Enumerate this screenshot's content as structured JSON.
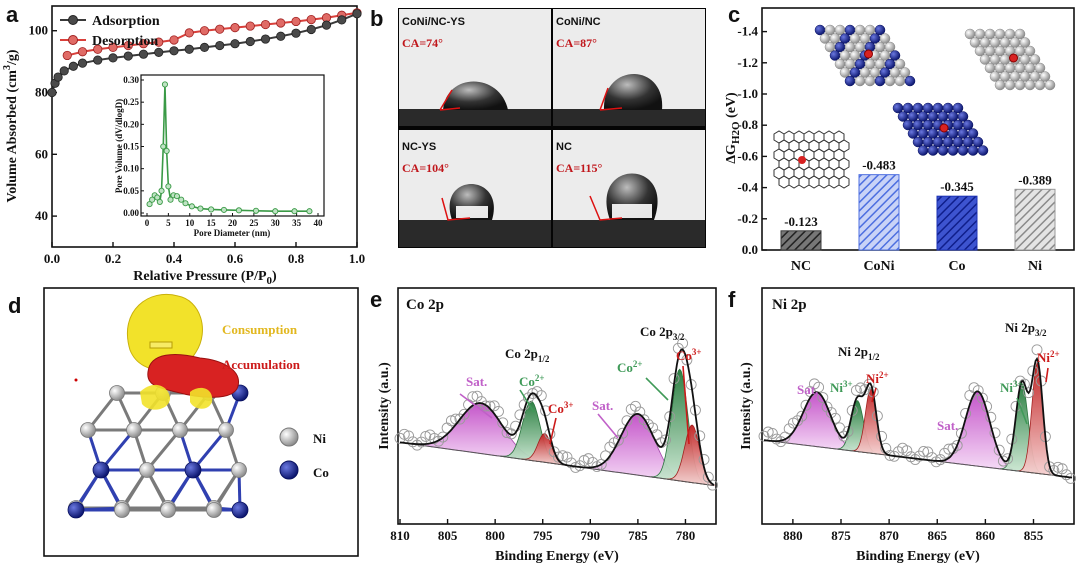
{
  "colors": {
    "adsorption": "#3a3a3a",
    "desorption": "#d9403b",
    "inset": "#3a9a46",
    "ca_text": "#c0161b",
    "ni": "#b4b4b4",
    "co": "#1c2aa0",
    "consumption": "#e8c81a",
    "accumulation": "#cc1a1a",
    "sat": "#d678d8",
    "co2": "#3f9a58",
    "co3": "#d93c3c",
    "bar_nc": "#3a3a3a",
    "bar_coni": "#4d6fe0",
    "bar_co": "#1c32b4",
    "bar_ni": "#9a9a9a"
  },
  "chart_data": [
    {
      "panel": "a",
      "type": "line",
      "xlabel": "Relative Pressure (P/P₀)",
      "xlabel_main": "Relative Pressure (P/P",
      "xlabel_sub": "0",
      "xlabel_close": ")",
      "ylabel": "Volume Absorbed (cm³/g)",
      "ylabel_main": "Volume Absorbed (cm",
      "ylabel_sup": "3",
      "ylabel_close": "/g)",
      "xlim": [
        0,
        1.0
      ],
      "ylim": [
        30,
        108
      ],
      "xticks": [
        "0.0",
        "0.2",
        "0.4",
        "0.6",
        "0.8",
        "1.0"
      ],
      "yticks": [
        "40",
        "60",
        "80",
        "100"
      ],
      "legend": [
        "Adsorption",
        "Desorption"
      ],
      "series": [
        {
          "name": "Adsorption",
          "x": [
            0.0,
            0.01,
            0.02,
            0.04,
            0.07,
            0.1,
            0.15,
            0.2,
            0.25,
            0.3,
            0.35,
            0.4,
            0.45,
            0.5,
            0.55,
            0.6,
            0.65,
            0.7,
            0.75,
            0.8,
            0.85,
            0.9,
            0.95,
            1.0
          ],
          "y": [
            80,
            83,
            85,
            87,
            88.5,
            89.5,
            90.5,
            91.2,
            91.8,
            92.4,
            93,
            93.5,
            94,
            94.6,
            95.2,
            95.8,
            96.5,
            97.3,
            98.2,
            99.2,
            100.4,
            101.8,
            103.5,
            105.5
          ]
        },
        {
          "name": "Desorption",
          "x": [
            0.05,
            0.1,
            0.15,
            0.2,
            0.25,
            0.3,
            0.35,
            0.4,
            0.45,
            0.5,
            0.55,
            0.6,
            0.65,
            0.7,
            0.75,
            0.8,
            0.85,
            0.9,
            0.95,
            1.0
          ],
          "y": [
            92,
            93.2,
            94,
            94.6,
            95.2,
            95.8,
            96.3,
            97,
            99.3,
            100,
            100.5,
            101,
            101.5,
            102,
            102.5,
            103,
            103.6,
            104.2,
            105,
            105.8
          ]
        }
      ],
      "inset": {
        "xlabel": "Pore Diameter (nm)",
        "ylabel": "Pore Volume (dV/dlogD)",
        "xlim": [
          0,
          40
        ],
        "ylim": [
          0,
          0.3
        ],
        "xticks": [
          "0",
          "5",
          "10",
          "15",
          "20",
          "25",
          "30",
          "35",
          "40"
        ],
        "yticks": [
          "0.00",
          "0.05",
          "0.10",
          "0.15",
          "0.20",
          "0.25",
          "0.30"
        ],
        "x": [
          0.6,
          1.2,
          1.8,
          2.4,
          3.0,
          3.4,
          3.8,
          4.2,
          4.6,
          5.0,
          5.5,
          6.2,
          7.0,
          8.0,
          9.0,
          10.5,
          12.5,
          15.0,
          18.0,
          21.5,
          25.5,
          30.0,
          34.5,
          38.0
        ],
        "y": [
          0.02,
          0.03,
          0.04,
          0.035,
          0.025,
          0.05,
          0.15,
          0.29,
          0.14,
          0.06,
          0.03,
          0.04,
          0.038,
          0.03,
          0.022,
          0.015,
          0.01,
          0.008,
          0.007,
          0.006,
          0.005,
          0.004,
          0.004,
          0.004
        ]
      }
    },
    {
      "panel": "b",
      "type": "image-grid",
      "cells": [
        {
          "label": "CoNi/NC-YS",
          "ca": "CA=74°"
        },
        {
          "label": "CoNi/NC",
          "ca": "CA=87°"
        },
        {
          "label": "NC-YS",
          "ca": "CA=104°"
        },
        {
          "label": "NC",
          "ca": "CA=115°"
        }
      ]
    },
    {
      "panel": "c",
      "type": "bar",
      "ylabel": "ΔG_H2O (eV)",
      "ylabel_main": "ΔG",
      "ylabel_sub": "H2O",
      "ylabel_unit": " (eV)",
      "ylim": [
        0,
        -1.5
      ],
      "yticks": [
        "0.0",
        "-0.2",
        "-0.4",
        "-0.6",
        "-0.8",
        "-1.0",
        "-1.2",
        "-1.4"
      ],
      "categories": [
        "NC",
        "CoNi",
        "Co",
        "Ni"
      ],
      "values": [
        -0.123,
        -0.483,
        -0.345,
        -0.389
      ],
      "value_labels": [
        "-0.123",
        "-0.483",
        "-0.345",
        "-0.389"
      ]
    },
    {
      "panel": "d",
      "type": "diagram",
      "legend": [
        "Consumption",
        "Accumulation",
        "Ni",
        "Co"
      ]
    },
    {
      "panel": "e",
      "type": "line",
      "title": "Co 2p",
      "xlabel": "Binding Energy (eV)",
      "ylabel": "Intensity (a.u.)",
      "xlim": [
        810,
        777
      ],
      "xticks": [
        "810",
        "805",
        "800",
        "795",
        "790",
        "785",
        "780"
      ],
      "xtick_values": [
        810,
        805,
        800,
        795,
        790,
        785,
        780
      ],
      "peaks": [
        {
          "label": "Co 2p",
          "sub": "1/2",
          "sup": "",
          "kind": "main"
        },
        {
          "label": "Co 2p",
          "sub": "3/2",
          "sup": "",
          "kind": "main"
        },
        {
          "label": "Co",
          "sub": "",
          "sup": "2+",
          "kind": "co2"
        },
        {
          "label": "Co",
          "sub": "",
          "sup": "3+",
          "kind": "co3"
        },
        {
          "label": "Sat.",
          "sub": "",
          "sup": "",
          "kind": "sat"
        }
      ],
      "components": [
        {
          "name": "Sat.",
          "center": 801.5,
          "height": 0.28,
          "width": 3.2
        },
        {
          "name": "Co2+",
          "center": 796.2,
          "height": 0.33,
          "width": 1.3
        },
        {
          "name": "Co3+",
          "center": 794.8,
          "height": 0.16,
          "width": 1.0
        },
        {
          "name": "Sat.",
          "center": 785.0,
          "height": 0.34,
          "width": 2.5
        },
        {
          "name": "Co2+",
          "center": 780.6,
          "height": 0.62,
          "width": 1.2
        },
        {
          "name": "Co3+",
          "center": 779.3,
          "height": 0.32,
          "width": 1.1
        }
      ]
    },
    {
      "panel": "f",
      "type": "line",
      "title": "Ni 2p",
      "xlabel": "Binding Energy (eV)",
      "ylabel": "Intensity (a.u.)",
      "xlim": [
        883,
        851
      ],
      "xticks": [
        "880",
        "875",
        "870",
        "865",
        "860",
        "855"
      ],
      "xtick_values": [
        880,
        875,
        870,
        865,
        860,
        855
      ],
      "peaks": [
        {
          "label": "Ni 2p",
          "sub": "1/2",
          "sup": "",
          "kind": "main"
        },
        {
          "label": "Ni 2p",
          "sub": "3/2",
          "sup": "",
          "kind": "main"
        },
        {
          "label": "Ni",
          "sub": "",
          "sup": "3+",
          "kind": "co2"
        },
        {
          "label": "Ni",
          "sub": "",
          "sup": "2+",
          "kind": "co3"
        },
        {
          "label": "Sat.",
          "sub": "",
          "sup": "",
          "kind": "sat"
        }
      ],
      "components": [
        {
          "name": "Sat.",
          "center": 877.5,
          "height": 0.32,
          "width": 2.0
        },
        {
          "name": "Ni3+",
          "center": 873.3,
          "height": 0.3,
          "width": 0.9
        },
        {
          "name": "Ni2+",
          "center": 871.9,
          "height": 0.38,
          "width": 0.8
        },
        {
          "name": "Sat.",
          "center": 860.8,
          "height": 0.44,
          "width": 1.8
        },
        {
          "name": "Ni3+",
          "center": 856.2,
          "height": 0.52,
          "width": 0.9
        },
        {
          "name": "Ni2+",
          "center": 854.6,
          "height": 0.65,
          "width": 0.8
        }
      ]
    }
  ],
  "panels": {
    "a": "a",
    "b": "b",
    "c": "c",
    "d": "d",
    "e": "e",
    "f": "f"
  }
}
